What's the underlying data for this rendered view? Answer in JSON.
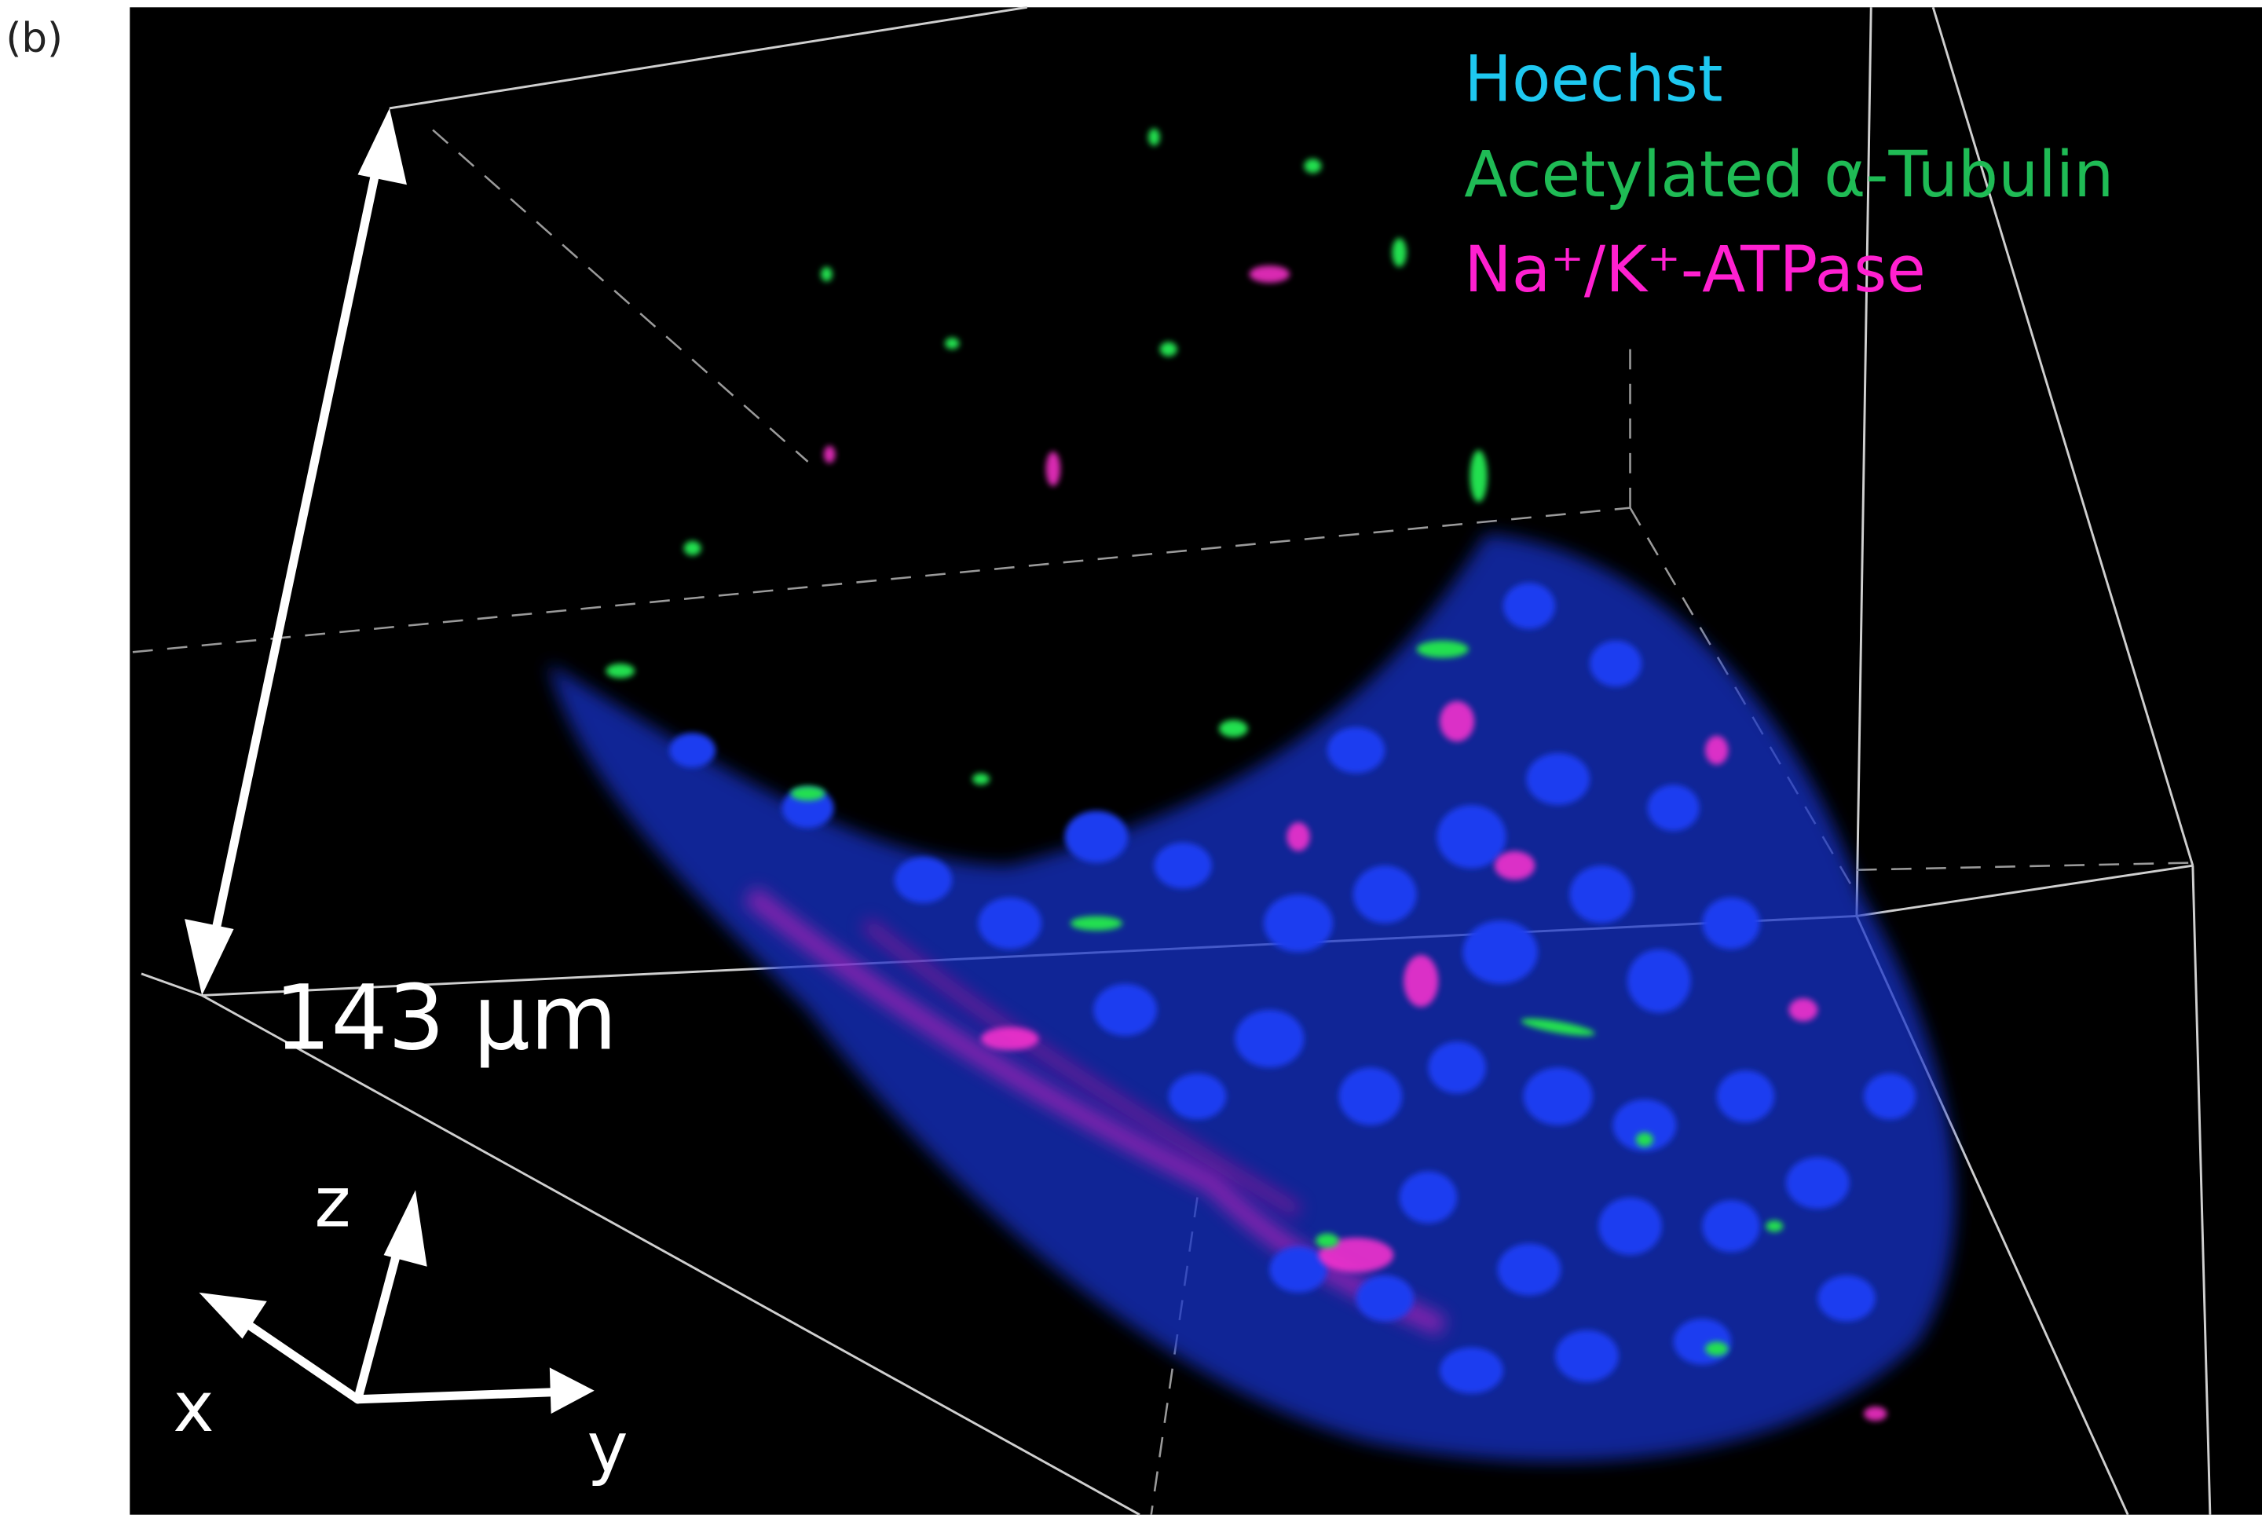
{
  "panel_label": "(b)",
  "legend": {
    "items": [
      "Hoechst",
      "Acetylated α-Tubulin",
      "Na⁺/K⁺-ATPase"
    ]
  },
  "scale_bar": {
    "label": "143 μm"
  },
  "axes": {
    "z": "z",
    "x": "x",
    "y": "y"
  }
}
